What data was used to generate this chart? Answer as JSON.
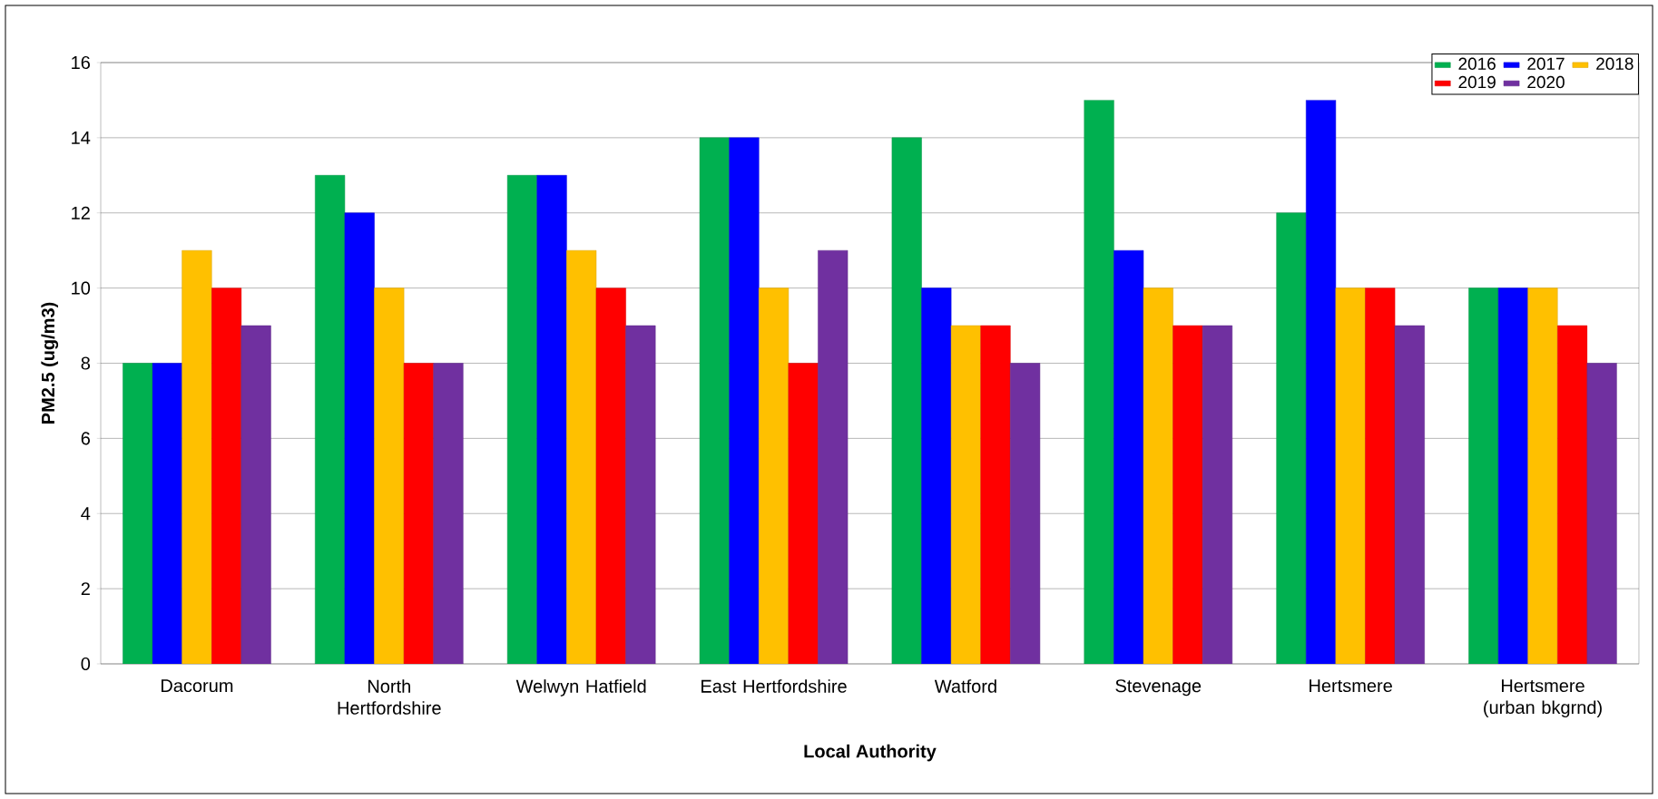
{
  "chart_data": {
    "type": "bar",
    "xlabel": "Local Authority",
    "ylabel": "PM2.5 (ug/m3)",
    "categories": [
      "Dacorum",
      "North Hertfordshire",
      "Welwyn Hatfield",
      "East Hertfordshire",
      "Watford",
      "Stevenage",
      "Hertsmere",
      "Hertsmere (urban bkgrnd)"
    ],
    "series": [
      {
        "name": "2016",
        "color": "#00b050",
        "values": [
          8,
          13,
          13,
          14,
          14,
          15,
          12,
          10
        ]
      },
      {
        "name": "2017",
        "color": "#0000ff",
        "values": [
          8,
          12,
          13,
          14,
          10,
          11,
          15,
          10
        ]
      },
      {
        "name": "2018",
        "color": "#ffc000",
        "values": [
          11,
          10,
          11,
          10,
          9,
          10,
          10,
          10
        ]
      },
      {
        "name": "2019",
        "color": "#ff0000",
        "values": [
          10,
          8,
          10,
          8,
          9,
          9,
          10,
          9
        ]
      },
      {
        "name": "2020",
        "color": "#7030a0",
        "values": [
          9,
          8,
          9,
          11,
          8,
          9,
          9,
          8
        ]
      }
    ],
    "ylim": [
      0,
      16
    ],
    "yticks": [
      0,
      2,
      4,
      6,
      8,
      10,
      12,
      14,
      16
    ],
    "grid": "y",
    "legend": "top right"
  }
}
